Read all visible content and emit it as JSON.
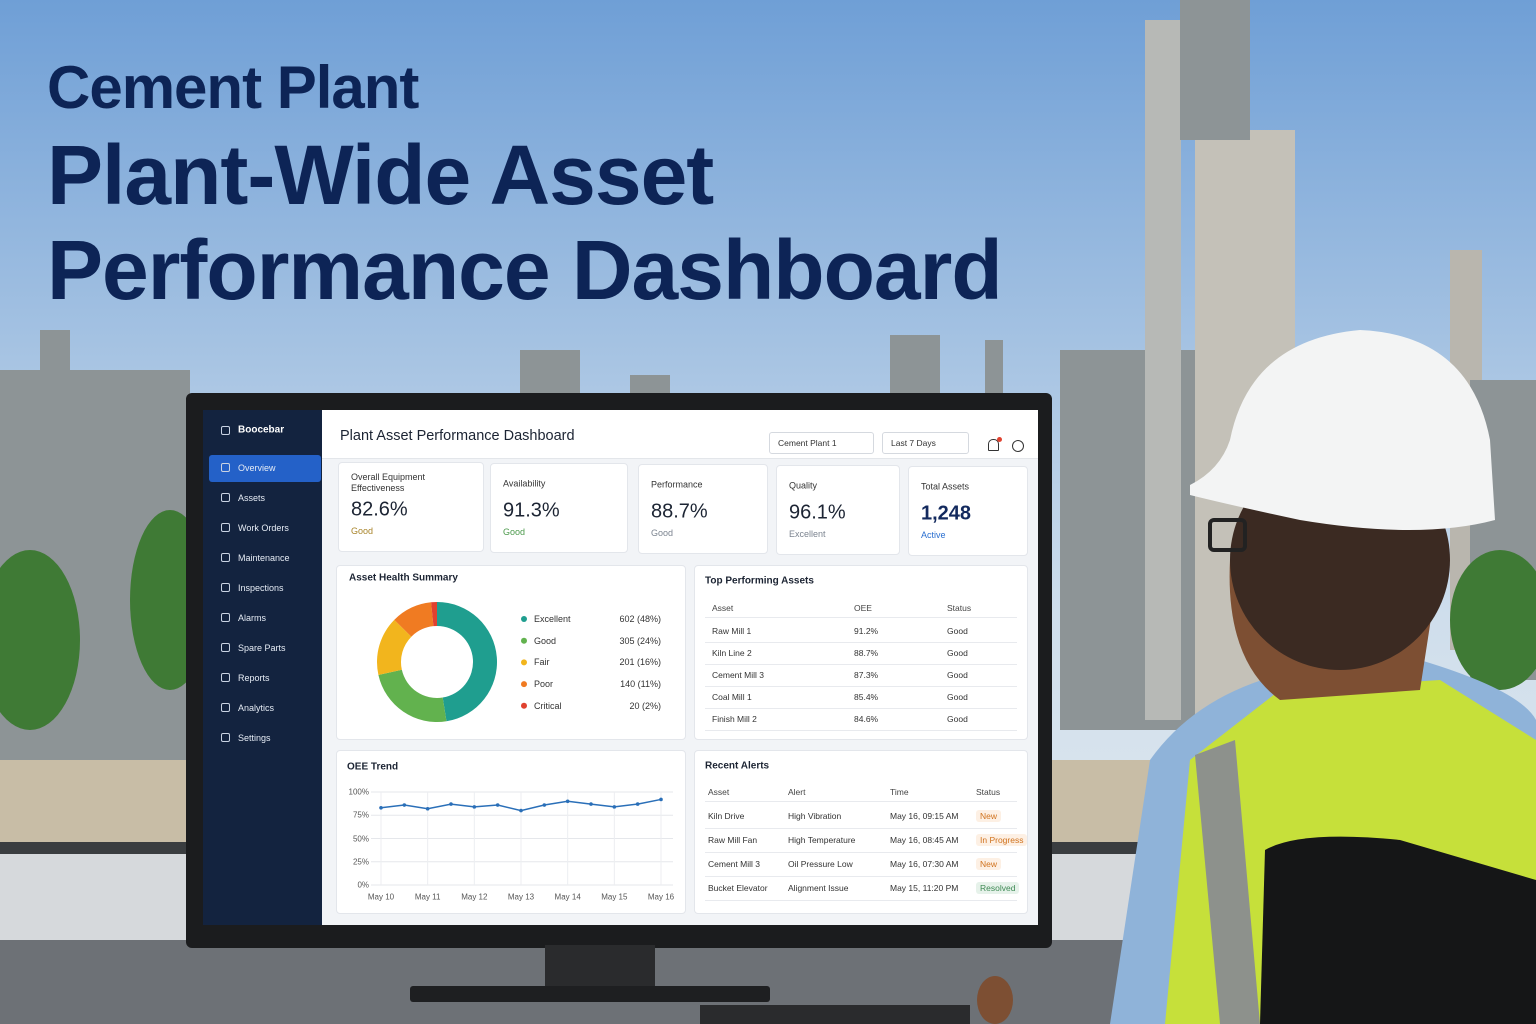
{
  "headline": {
    "eyebrow": "Cement Plant",
    "lines": [
      "Plant-Wide Asset",
      "Performance Dashboard"
    ]
  },
  "dashboard": {
    "sidebar": {
      "brand": "Boocebar",
      "nav": [
        "Overview",
        "Assets",
        "Work Orders",
        "Maintenance",
        "Inspections",
        "Alarms",
        "Spare Parts",
        "Reports",
        "Analytics",
        "Settings"
      ]
    },
    "header": {
      "title": "Plant Asset Performance Dashboard",
      "plant": "Cement Plant 1",
      "range": "Last 7 Days"
    },
    "kpis": [
      {
        "label": "Overall Equipment Effectiveness",
        "value": "82.6%",
        "status": "Good"
      },
      {
        "label": "Availability",
        "value": "91.3%",
        "status": "Good"
      },
      {
        "label": "Performance",
        "value": "88.7%",
        "status": "Good"
      },
      {
        "label": "Quality",
        "value": "96.1%",
        "status": "Excellent"
      },
      {
        "label": "Total Assets",
        "value": "1,248",
        "status": "Active"
      }
    ],
    "top_assets": {
      "title": "Top Performing Assets",
      "columns": [
        "Asset",
        "OEE",
        "Status"
      ],
      "rows": [
        [
          "Raw Mill 1",
          "91.2%",
          "Good"
        ],
        [
          "Kiln Line 2",
          "88.7%",
          "Good"
        ],
        [
          "Cement Mill 3",
          "87.3%",
          "Good"
        ],
        [
          "Coal Mill 1",
          "85.4%",
          "Good"
        ],
        [
          "Finish Mill 2",
          "84.6%",
          "Good"
        ]
      ]
    },
    "recent_alerts": {
      "title": "Recent Alerts",
      "columns": [
        "Asset",
        "Alert",
        "Time",
        "Status"
      ],
      "rows": [
        [
          "Kiln Drive",
          "High Vibration",
          "May 16, 09:15 AM",
          "New"
        ],
        [
          "Raw Mill Fan",
          "High Temperature",
          "May 16, 08:45 AM",
          "In Progress"
        ],
        [
          "Cement Mill 3",
          "Oil Pressure Low",
          "May 16, 07:30 AM",
          "New"
        ],
        [
          "Bucket Elevator",
          "Alignment Issue",
          "May 15, 11:20 PM",
          "Resolved"
        ]
      ]
    }
  },
  "chart_data": [
    {
      "type": "pie",
      "donut": true,
      "title": "Asset Health Summary",
      "categories": [
        "Excellent",
        "Good",
        "Fair",
        "Poor",
        "Critical"
      ],
      "values": [
        602,
        305,
        201,
        140,
        20
      ],
      "value_labels": [
        "602 (48%)",
        "305 (24%)",
        "201 (16%)",
        "140 (11%)",
        "20 (2%)"
      ],
      "colors": [
        "#1f9e8f",
        "#62b24e",
        "#f2b51d",
        "#f07b22",
        "#e0412f"
      ]
    },
    {
      "type": "line",
      "title": "OEE Trend",
      "categories": [
        "May 10",
        null,
        "May 11",
        null,
        "May 12",
        null,
        "May 13",
        null,
        "May 14",
        null,
        "May 15",
        null,
        "May 16"
      ],
      "values": [
        83,
        86,
        82,
        87,
        84,
        86,
        80,
        86,
        90,
        87,
        84,
        87,
        92
      ],
      "color": "#2a6fb8",
      "ylim": [
        0,
        100
      ],
      "yticks": [
        {
          "value": 0,
          "label": "0%"
        },
        {
          "value": 25,
          "label": "25%"
        },
        {
          "value": 50,
          "label": "50%"
        },
        {
          "value": 75,
          "label": "75%"
        },
        {
          "value": 100,
          "label": "100%"
        }
      ],
      "grid": true
    }
  ]
}
